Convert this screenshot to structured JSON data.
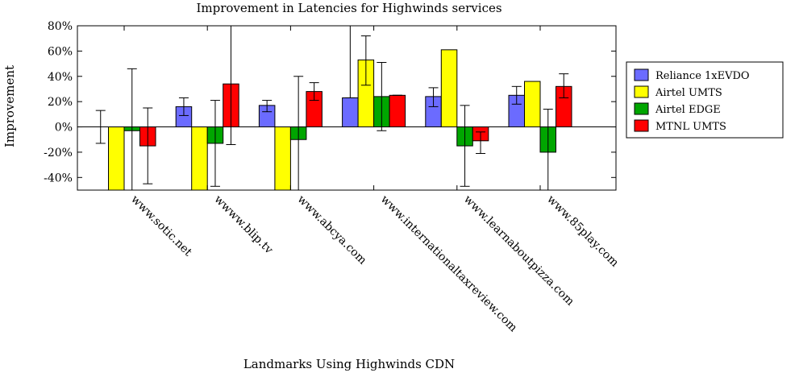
{
  "chart_data": {
    "type": "bar",
    "title": "Improvement in Latencies for Highwinds services",
    "xlabel": "Landmarks Using Highwinds CDN",
    "ylabel": "Improvement",
    "ylim": [
      -50,
      80
    ],
    "yticks": [
      "80%",
      "60%",
      "40%",
      "20%",
      "0%",
      "-20%",
      "-40%"
    ],
    "ytick_values": [
      80,
      60,
      40,
      20,
      0,
      -20,
      -40
    ],
    "grid": false,
    "legend_position": "right",
    "categories": [
      "www.sotic.net",
      "wwww.blip.tv",
      "www.abcya.com",
      "www.internationaltaxreview.com",
      "www.learnaboutpizza.com",
      "www.85play.com"
    ],
    "series": [
      {
        "name": "Reliance 1xEVDO",
        "color": "#6b6bff",
        "values": [
          0,
          16,
          17,
          23,
          24,
          25
        ],
        "err_low": [
          -13,
          9,
          12,
          23,
          16,
          18
        ],
        "err_high": [
          13,
          23,
          21,
          80,
          31,
          32
        ]
      },
      {
        "name": "Airtel UMTS",
        "color": "#ffff00",
        "values": [
          -50,
          -50,
          -50,
          53,
          61,
          36
        ],
        "err_low": [
          -50,
          -50,
          -50,
          33,
          -50,
          -50
        ],
        "err_high": [
          -50,
          -50,
          -50,
          72,
          -50,
          -50
        ]
      },
      {
        "name": "Airtel EDGE",
        "color": "#00a600",
        "values": [
          -3,
          -13,
          -10,
          24,
          -15,
          -20
        ],
        "err_low": [
          -50,
          -47,
          -50,
          -3,
          -47,
          -50
        ],
        "err_high": [
          46,
          21,
          40,
          51,
          17,
          14
        ]
      },
      {
        "name": "MTNL UMTS",
        "color": "#ff0000",
        "values": [
          -15,
          34,
          28,
          25,
          -11,
          32
        ],
        "err_low": [
          -45,
          -14,
          21,
          25,
          -21,
          23
        ],
        "err_high": [
          15,
          80,
          35,
          25,
          -4,
          42
        ]
      }
    ]
  }
}
